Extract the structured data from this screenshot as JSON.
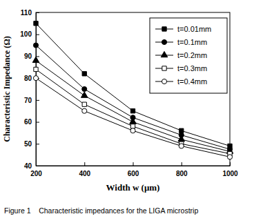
{
  "chart_data": {
    "type": "line",
    "title": "Figure 1    Characteristic impedances for the LIGA microstrip",
    "x_label": "Width  w (μm)",
    "y_label": "Characteristic  Impedance (Ω)",
    "x": [
      200,
      400,
      600,
      800,
      1000
    ],
    "xlim": [
      200,
      1000
    ],
    "xticks": [
      200,
      400,
      600,
      800,
      1000
    ],
    "ylim": [
      40,
      110
    ],
    "yticks": [
      40,
      50,
      60,
      70,
      80,
      90,
      100,
      110
    ],
    "grid": false,
    "legend": "upper right",
    "series": [
      {
        "name": "t=0.01mm",
        "color": "#000000",
        "marker": "square",
        "values": [
          105,
          82,
          65,
          56,
          49
        ]
      },
      {
        "name": "t=0.1mm",
        "color": "#000000",
        "marker": "circle",
        "values": [
          95,
          75,
          62,
          54,
          47.5
        ]
      },
      {
        "name": "t=0.2mm",
        "color": "#000000",
        "marker": "triangle",
        "values": [
          88,
          72,
          60,
          52,
          46.5
        ]
      },
      {
        "name": "t=0.3mm",
        "color": "#000000",
        "marker": "open-square",
        "values": [
          84,
          68,
          58,
          50,
          45.5
        ]
      },
      {
        "name": "t=0.4mm",
        "color": "#000000",
        "marker": "open-circle",
        "values": [
          80,
          65,
          56,
          49,
          44
        ]
      }
    ]
  }
}
